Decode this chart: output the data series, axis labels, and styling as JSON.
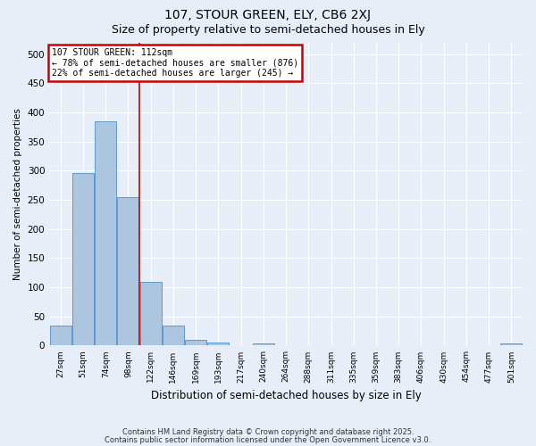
{
  "title1": "107, STOUR GREEN, ELY, CB6 2XJ",
  "title2": "Size of property relative to semi-detached houses in Ely",
  "xlabel": "Distribution of semi-detached houses by size in Ely",
  "ylabel": "Number of semi-detached properties",
  "categories": [
    "27sqm",
    "51sqm",
    "74sqm",
    "98sqm",
    "122sqm",
    "146sqm",
    "169sqm",
    "193sqm",
    "217sqm",
    "240sqm",
    "264sqm",
    "288sqm",
    "311sqm",
    "335sqm",
    "359sqm",
    "383sqm",
    "406sqm",
    "430sqm",
    "454sqm",
    "477sqm",
    "501sqm"
  ],
  "values": [
    35,
    296,
    384,
    255,
    109,
    35,
    10,
    6,
    0,
    4,
    0,
    0,
    0,
    0,
    0,
    0,
    0,
    0,
    0,
    0,
    4
  ],
  "bar_color": "#adc6e0",
  "bar_edge_color": "#5b9bd5",
  "annotation_line1": "107 STOUR GREEN: 112sqm",
  "annotation_line2": "← 78% of semi-detached houses are smaller (876)",
  "annotation_line3": "22% of semi-detached houses are larger (245) →",
  "annotation_box_color": "#ffffff",
  "annotation_box_edge_color": "#cc0000",
  "property_line_color": "#cc0000",
  "property_line_x": 3.5,
  "ylim": [
    0,
    520
  ],
  "yticks": [
    0,
    50,
    100,
    150,
    200,
    250,
    300,
    350,
    400,
    450,
    500
  ],
  "background_color": "#e8eef8",
  "grid_color": "#ffffff",
  "footer_text1": "Contains HM Land Registry data © Crown copyright and database right 2025.",
  "footer_text2": "Contains public sector information licensed under the Open Government Licence v3.0."
}
